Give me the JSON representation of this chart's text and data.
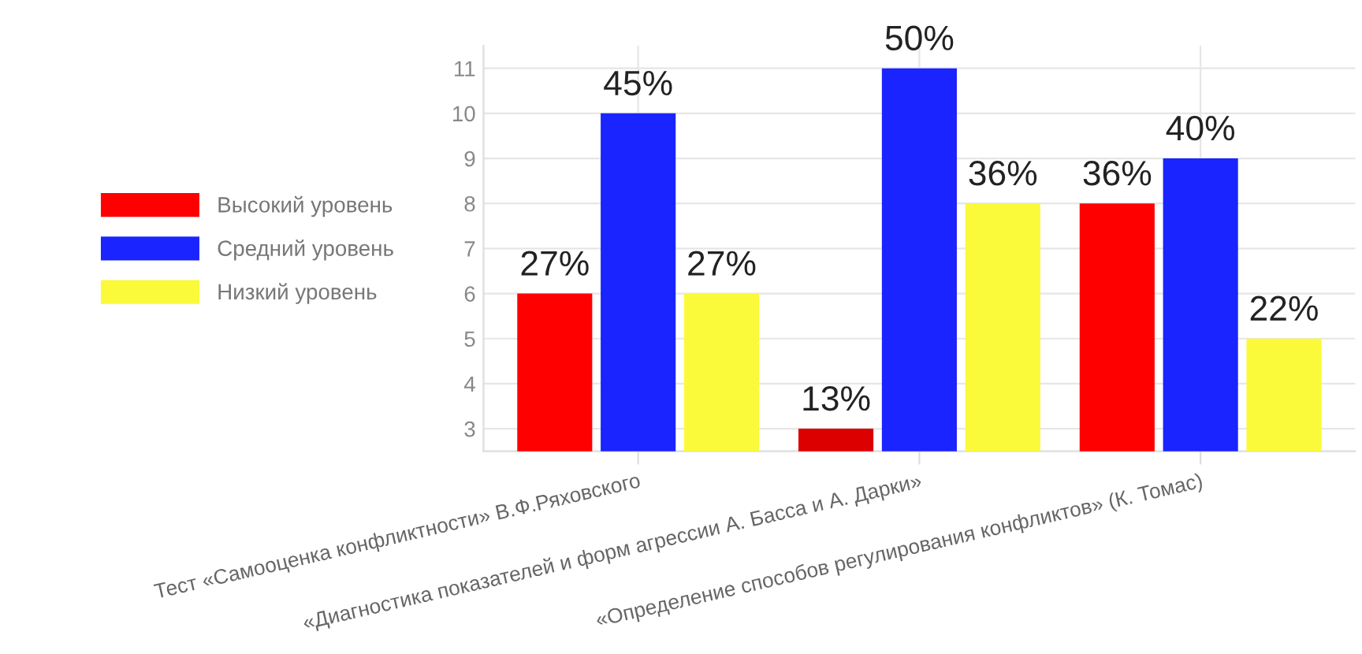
{
  "chart_data": {
    "type": "bar",
    "categories": [
      "Тест «Самооценка конфликтности» В.Ф.Ряховского",
      "«Диагностика показателей и форм агрессии А. Басса и А. Дарки»",
      "«Определение способов регулирования конфликтов» (К. Томас)"
    ],
    "series": [
      {
        "name": "Высокий уровень",
        "color": "#ff0000",
        "colors": [
          "#ff0000",
          "#dd0000",
          "#ff0000"
        ],
        "values": [
          6,
          3,
          8
        ]
      },
      {
        "name": "Средний уровень",
        "color": "#1a24ff",
        "values": [
          10,
          11,
          9
        ]
      },
      {
        "name": "Низкий уровень",
        "color": "#fafa3a",
        "values": [
          6,
          8,
          5
        ]
      }
    ],
    "annotations": [
      "27%",
      "13%",
      "36%",
      "45%",
      "50%",
      "40%",
      "27%",
      "36%",
      "22%"
    ],
    "ylim": [
      2.5,
      11.5
    ],
    "yticks": [
      3,
      4,
      5,
      6,
      7,
      8,
      9,
      10,
      11
    ],
    "grid": true,
    "legend": "left"
  }
}
